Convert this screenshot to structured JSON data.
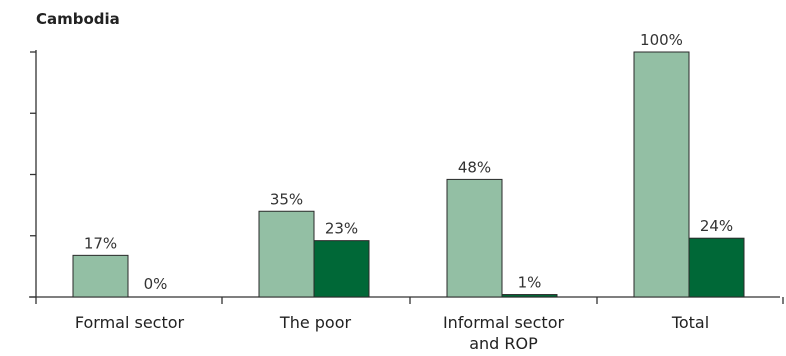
{
  "chart_data": {
    "type": "bar",
    "title": "Cambodia",
    "categories": [
      [
        "Formal sector"
      ],
      [
        "The poor"
      ],
      [
        "Informal sector",
        "and ROP"
      ],
      [
        "Total"
      ]
    ],
    "series": [
      {
        "values": [
          17,
          35,
          48,
          100
        ],
        "labels": [
          "17%",
          "35%",
          "48%",
          "100%"
        ],
        "color": "#93bfa4"
      },
      {
        "values": [
          0,
          23,
          1,
          24
        ],
        "labels": [
          "0%",
          "23%",
          "1%",
          "24%"
        ],
        "color": "#006837"
      }
    ],
    "ylim": [
      0,
      100
    ],
    "y_tick_count": 5,
    "grid": false,
    "legend": "none"
  }
}
